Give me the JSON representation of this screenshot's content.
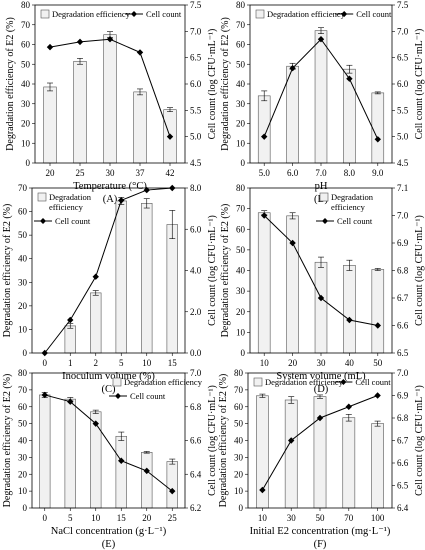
{
  "chart_data": [
    {
      "panel": "(A)",
      "type": "bar",
      "xlabel": "Temperature (°C)",
      "ylabel": "Degradation efficiency of E2 (%)",
      "ylabel2": "Cell count (log CFU·mL⁻¹)",
      "categories": [
        "20",
        "25",
        "30",
        "37",
        "42"
      ],
      "ylim": [
        0,
        80
      ],
      "yticks": [
        0,
        10,
        20,
        30,
        40,
        50,
        60,
        70,
        80
      ],
      "y2lim": [
        4.5,
        7.5
      ],
      "y2ticks": [
        "4.5",
        "5.0",
        "5.5",
        "6.0",
        "6.5",
        "7.0",
        "7.5"
      ],
      "legend": [
        "Degradation efficiency",
        "Cell count"
      ],
      "legend_placement": "top",
      "series": [
        {
          "name": "Degradation efficiency",
          "values": [
            38.5,
            51.5,
            65,
            36,
            27
          ],
          "errors": [
            2,
            1.5,
            1.5,
            1.5,
            1
          ]
        },
        {
          "name": "Cell count",
          "values": [
            6.7,
            6.8,
            6.85,
            6.6,
            5.0
          ],
          "axis": "right"
        }
      ]
    },
    {
      "panel": "(B)",
      "type": "bar",
      "xlabel": "pH",
      "ylabel": "Degradation efficiency of E2 (%)",
      "ylabel2": "Cell count (log CFU·mL⁻¹)",
      "categories": [
        "5.0",
        "6.0",
        "7.0",
        "8.0",
        "9.0"
      ],
      "ylim": [
        0,
        80
      ],
      "yticks": [
        0,
        10,
        20,
        30,
        40,
        50,
        60,
        70,
        80
      ],
      "y2lim": [
        4.5,
        7.5
      ],
      "y2ticks": [
        "4.5",
        "5.0",
        "5.5",
        "6.0",
        "6.5",
        "7.0",
        "7.5"
      ],
      "legend": [
        "Degradation efficiency",
        "Cell count"
      ],
      "legend_placement": "top",
      "series": [
        {
          "name": "Degradation efficiency",
          "values": [
            34,
            49,
            67,
            47.5,
            35.5
          ],
          "errors": [
            2.5,
            1.5,
            1.5,
            2,
            0.5
          ]
        },
        {
          "name": "Cell count",
          "values": [
            5.0,
            6.3,
            6.85,
            6.1,
            4.95
          ],
          "axis": "right"
        }
      ]
    },
    {
      "panel": "(C)",
      "type": "bar",
      "xlabel": "Inoculum volume (%)",
      "ylabel": "Degradation efficiency of E2 (%)",
      "ylabel2": "Cell count (log CFU·mL⁻¹)",
      "categories": [
        "0",
        "1",
        "2",
        "5",
        "10",
        "15"
      ],
      "ylim": [
        0,
        70
      ],
      "yticks": [
        0,
        10,
        20,
        30,
        40,
        50,
        60,
        70
      ],
      "y2lim": [
        0,
        8
      ],
      "y2ticks": [
        "0.0",
        "2.0",
        "4.0",
        "6.0",
        "8.0"
      ],
      "legend": [
        "Degradation\nefficiency",
        "Cell count"
      ],
      "legend_placement": "top-left",
      "series": [
        {
          "name": "Degradation efficiency",
          "values": [
            0,
            11.5,
            25.5,
            64.5,
            63.5,
            54.5
          ],
          "errors": [
            0,
            1,
            1,
            1.5,
            2,
            6
          ]
        },
        {
          "name": "Cell count",
          "values": [
            0,
            1.6,
            3.7,
            7.4,
            7.9,
            8.0
          ],
          "axis": "right"
        }
      ]
    },
    {
      "panel": "(D)",
      "type": "bar",
      "xlabel": "System volume (mL)",
      "ylabel": "Degradation efficiency of E2 (%)",
      "ylabel2": "Cell count (log CFU·mL⁻¹)",
      "categories": [
        "10",
        "20",
        "30",
        "40",
        "50"
      ],
      "ylim": [
        0,
        80
      ],
      "yticks": [
        0,
        10,
        20,
        30,
        40,
        50,
        60,
        70,
        80
      ],
      "y2lim": [
        6.5,
        7.1
      ],
      "y2ticks": [
        "6.5",
        "6.6",
        "6.7",
        "6.8",
        "6.9",
        "7.0",
        "7.1"
      ],
      "legend": [
        "Degradation\nefficiency",
        "Cell count"
      ],
      "legend_placement": "top-right",
      "series": [
        {
          "name": "Degradation efficiency",
          "values": [
            68,
            66.5,
            44,
            42.5,
            40.5
          ],
          "errors": [
            1,
            1.5,
            2.5,
            2.5,
            0.5
          ]
        },
        {
          "name": "Cell count",
          "values": [
            7.0,
            6.9,
            6.7,
            6.62,
            6.6
          ],
          "axis": "right"
        }
      ]
    },
    {
      "panel": "(E)",
      "type": "bar",
      "xlabel": "NaCl concentration (g·L⁻¹)",
      "ylabel": "Degradation efficiency of E2 (%)",
      "ylabel2": "Cell count (log CFU·mL⁻¹)",
      "categories": [
        "0",
        "5",
        "10",
        "15",
        "20",
        "25"
      ],
      "ylim": [
        0,
        80
      ],
      "yticks": [
        0,
        10,
        20,
        30,
        40,
        50,
        60,
        70,
        80
      ],
      "y2lim": [
        6.2,
        7.0
      ],
      "y2ticks": [
        "6.2",
        "6.4",
        "6.6",
        "6.8",
        "7.0"
      ],
      "legend": [
        "Degradation efficiency",
        "Cell count"
      ],
      "legend_placement": "top-right",
      "series": [
        {
          "name": "Degradation efficiency",
          "values": [
            67,
            64.5,
            57,
            42.5,
            33,
            27.5
          ],
          "errors": [
            1.5,
            1,
            1,
            2.5,
            0.5,
            1.5
          ]
        },
        {
          "name": "Cell count",
          "values": [
            6.87,
            6.83,
            6.7,
            6.48,
            6.42,
            6.3
          ],
          "axis": "right"
        }
      ]
    },
    {
      "panel": "(F)",
      "type": "bar",
      "xlabel": "Initial E2 concentration (mg·L⁻¹)",
      "ylabel": "Degradation efficiency of E2 (%)",
      "ylabel2": "Cell count (log CFU·mL⁻¹)",
      "categories": [
        "10",
        "30",
        "50",
        "70",
        "100"
      ],
      "ylim": [
        0,
        80
      ],
      "yticks": [
        0,
        10,
        20,
        30,
        40,
        50,
        60,
        70,
        80
      ],
      "y2lim": [
        6.4,
        7.0
      ],
      "y2ticks": [
        "6.4",
        "6.5",
        "6.6",
        "6.7",
        "6.8",
        "6.9",
        "7.0"
      ],
      "legend": [
        "Degradation efficiency",
        "Cell count"
      ],
      "legend_placement": "top",
      "series": [
        {
          "name": "Degradation efficiency",
          "values": [
            66.5,
            64,
            66,
            53.5,
            50
          ],
          "errors": [
            1,
            2,
            1,
            2,
            1.5
          ]
        },
        {
          "name": "Cell count",
          "values": [
            6.48,
            6.7,
            6.8,
            6.85,
            6.9
          ],
          "axis": "right"
        }
      ]
    }
  ]
}
